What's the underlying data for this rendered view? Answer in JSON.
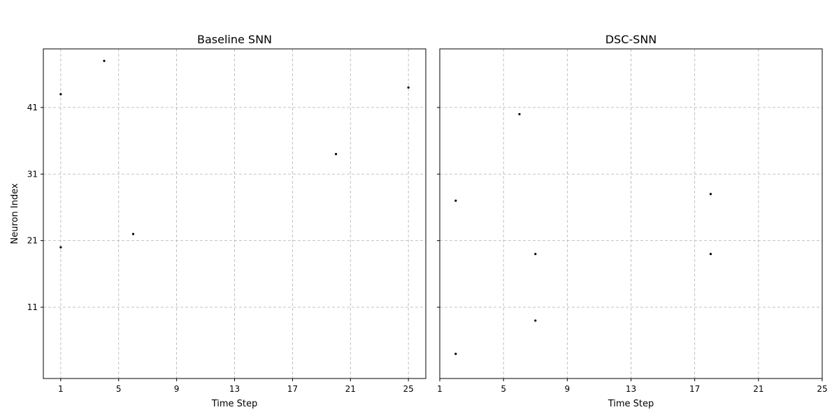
{
  "chart_data": [
    {
      "type": "scatter",
      "title": "Baseline SNN",
      "xlabel": "Time Step",
      "ylabel": "Neuron Index",
      "xlim": [
        -0.2,
        26.2
      ],
      "ylim": [
        0.3,
        49.8
      ],
      "xticks": [
        1,
        5,
        9,
        13,
        17,
        21,
        25
      ],
      "yticks": [
        11,
        21,
        31,
        41
      ],
      "grid": true,
      "marker_color": "#000000",
      "points": [
        {
          "x": 1,
          "y": 43
        },
        {
          "x": 4,
          "y": 48
        },
        {
          "x": 1,
          "y": 20
        },
        {
          "x": 6,
          "y": 22
        },
        {
          "x": 20,
          "y": 34
        },
        {
          "x": 25,
          "y": 44
        }
      ]
    },
    {
      "type": "scatter",
      "title": "DSC-SNN",
      "xlabel": "Time Step",
      "ylabel": "",
      "xlim": [
        1,
        25
      ],
      "ylim": [
        0.3,
        49.8
      ],
      "xticks": [
        1,
        5,
        9,
        13,
        17,
        21,
        25
      ],
      "yticks": [
        11,
        21,
        31,
        41
      ],
      "grid": true,
      "marker_color": "#000000",
      "points": [
        {
          "x": 2,
          "y": 27
        },
        {
          "x": 6,
          "y": 40
        },
        {
          "x": 7,
          "y": 19
        },
        {
          "x": 7,
          "y": 9
        },
        {
          "x": 2,
          "y": 4
        },
        {
          "x": 18,
          "y": 28
        },
        {
          "x": 18,
          "y": 19
        }
      ]
    }
  ]
}
